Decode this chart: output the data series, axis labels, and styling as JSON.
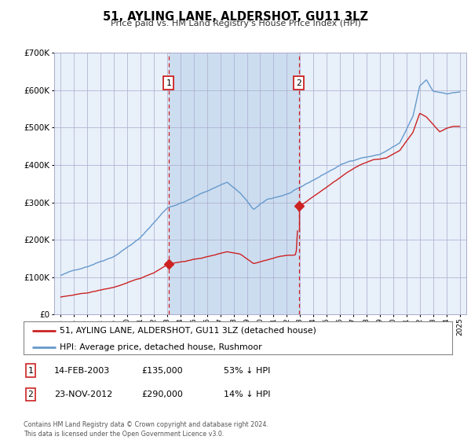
{
  "title": "51, AYLING LANE, ALDERSHOT, GU11 3LZ",
  "subtitle": "Price paid vs. HM Land Registry's House Price Index (HPI)",
  "background_color": "#ffffff",
  "plot_bg_color": "#e8f0fa",
  "highlight_bg": "#ccddf0",
  "hpi_color": "#6699cc",
  "price_color": "#cc2222",
  "ylim": [
    0,
    700000
  ],
  "yticks": [
    0,
    100000,
    200000,
    300000,
    400000,
    500000,
    600000,
    700000
  ],
  "sale1_date_x": 2003.12,
  "sale1_price": 135000,
  "sale1_label": "1",
  "sale2_date_x": 2012.9,
  "sale2_price": 290000,
  "sale2_label": "2",
  "legend_line1": "51, AYLING LANE, ALDERSHOT, GU11 3LZ (detached house)",
  "legend_line2": "HPI: Average price, detached house, Rushmoor",
  "table_row1": [
    "1",
    "14-FEB-2003",
    "£135,000",
    "53% ↓ HPI"
  ],
  "table_row2": [
    "2",
    "23-NOV-2012",
    "£290,000",
    "14% ↓ HPI"
  ],
  "footnote": "Contains HM Land Registry data © Crown copyright and database right 2024.\nThis data is licensed under the Open Government Licence v3.0.",
  "highlight_start": 2003.12,
  "highlight_end": 2012.9,
  "xmin": 1994.5,
  "xmax": 2025.5
}
